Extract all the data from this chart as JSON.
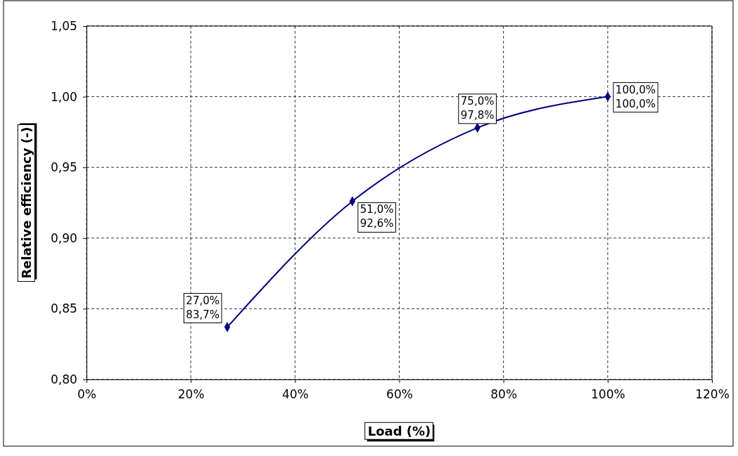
{
  "chart_data": {
    "type": "line",
    "xlabel": "Load (%)",
    "ylabel": "Relative efficiency (-)",
    "x": [
      27,
      51,
      75,
      100
    ],
    "series": [
      {
        "color": "#000080",
        "values": [
          0.837,
          0.926,
          0.978,
          1.0
        ],
        "value_labels": [
          "27,0%\n83,7%",
          "51,0%\n92,6%",
          "75,0%\n97,8%",
          "100,0%\n100,0%"
        ]
      }
    ],
    "xlim": [
      0,
      120
    ],
    "xticks": [
      {
        "value": 0,
        "label": "0%"
      },
      {
        "value": 20,
        "label": "20%"
      },
      {
        "value": 40,
        "label": "40%"
      },
      {
        "value": 60,
        "label": "60%"
      },
      {
        "value": 80,
        "label": "80%"
      },
      {
        "value": 100,
        "label": "100%"
      },
      {
        "value": 120,
        "label": "120%"
      }
    ],
    "ylim": [
      0.8,
      1.05
    ],
    "yticks": [
      {
        "value": 0.8,
        "label": "0,80"
      },
      {
        "value": 0.85,
        "label": "0,85"
      },
      {
        "value": 0.9,
        "label": "0,90"
      },
      {
        "value": 0.95,
        "label": "0,95"
      },
      {
        "value": 1.0,
        "label": "1,00"
      },
      {
        "value": 1.05,
        "label": "1,05"
      }
    ],
    "grid": true,
    "marker": "diamond",
    "line_style": "solid"
  }
}
